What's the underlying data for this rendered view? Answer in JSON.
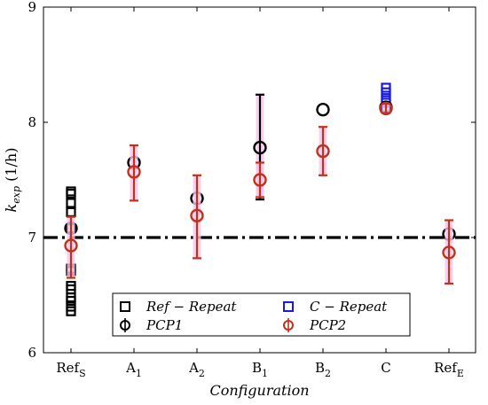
{
  "chart_data": {
    "type": "scatter",
    "xlabel": "Configuration",
    "ylabel": "k_exp (1/h)",
    "ylabel_main": "k",
    "ylabel_sub": "exp",
    "ylabel_unit": " (1/h)",
    "ylim": [
      6,
      9
    ],
    "yticks": [
      6,
      7,
      8,
      9
    ],
    "categories": [
      {
        "main": "Ref",
        "sub": "S"
      },
      {
        "main": "A",
        "sub": "1"
      },
      {
        "main": "A",
        "sub": "2"
      },
      {
        "main": "B",
        "sub": "1"
      },
      {
        "main": "B",
        "sub": "2"
      },
      {
        "main": "C",
        "sub": ""
      },
      {
        "main": "Ref",
        "sub": "E"
      }
    ],
    "reference_line": {
      "y": 7.0,
      "style": "dash-dot",
      "color": "#000000"
    },
    "series": [
      {
        "name": "Ref − Repeat",
        "marker": "square",
        "color": "#000000",
        "points": [
          {
            "x": 0,
            "y": 7.4
          },
          {
            "x": 0,
            "y": 7.38
          },
          {
            "x": 0,
            "y": 7.3
          },
          {
            "x": 0,
            "y": 7.22
          },
          {
            "x": 0,
            "y": 7.08
          },
          {
            "x": 0,
            "y": 6.73
          },
          {
            "x": 0,
            "y": 6.71
          },
          {
            "x": 0,
            "y": 6.58
          },
          {
            "x": 0,
            "y": 6.55
          },
          {
            "x": 0,
            "y": 6.48
          },
          {
            "x": 0,
            "y": 6.45
          },
          {
            "x": 0,
            "y": 6.4
          },
          {
            "x": 0,
            "y": 6.36
          }
        ]
      },
      {
        "name": "C − Repeat",
        "marker": "square",
        "color": "#1a1adf",
        "points": [
          {
            "x": 5,
            "y": 8.3
          },
          {
            "x": 5,
            "y": 8.26
          },
          {
            "x": 5,
            "y": 8.21
          },
          {
            "x": 5,
            "y": 8.17
          },
          {
            "x": 5,
            "y": 8.13
          }
        ]
      },
      {
        "name": "PCP1",
        "marker": "circle",
        "color": "#000000",
        "points": [
          {
            "x": 0,
            "y": 7.08,
            "err_low": 7.08,
            "err_high": 7.08
          },
          {
            "x": 1,
            "y": 7.65,
            "err_low": 7.65,
            "err_high": 7.65
          },
          {
            "x": 2,
            "y": 7.34,
            "err_low": 7.34,
            "err_high": 7.34
          },
          {
            "x": 3,
            "y": 7.78,
            "err_low": 7.33,
            "err_high": 8.24
          },
          {
            "x": 4,
            "y": 8.11,
            "err_low": 8.11,
            "err_high": 8.11
          },
          {
            "x": 5,
            "y": 8.13,
            "err_low": 8.13,
            "err_high": 8.13
          },
          {
            "x": 6,
            "y": 7.03,
            "err_low": 7.03,
            "err_high": 7.03
          }
        ]
      },
      {
        "name": "PCP2",
        "marker": "circle",
        "color": "#c0321c",
        "points": [
          {
            "x": 0,
            "y": 6.93,
            "err_low": 6.65,
            "err_high": 7.18
          },
          {
            "x": 1,
            "y": 7.57,
            "err_low": 7.32,
            "err_high": 7.8
          },
          {
            "x": 2,
            "y": 7.19,
            "err_low": 6.82,
            "err_high": 7.54
          },
          {
            "x": 3,
            "y": 7.5,
            "err_low": 7.35,
            "err_high": 7.65
          },
          {
            "x": 4,
            "y": 7.75,
            "err_low": 7.54,
            "err_high": 7.96
          },
          {
            "x": 5,
            "y": 8.12,
            "err_low": 8.08,
            "err_high": 8.16
          },
          {
            "x": 6,
            "y": 6.87,
            "err_low": 6.6,
            "err_high": 7.15
          }
        ]
      }
    ],
    "legend": {
      "placement": "bottom-center",
      "entries": [
        {
          "series": "Ref − Repeat",
          "text": "Ref − Repeat"
        },
        {
          "series": "C − Repeat",
          "text": "C − Repeat"
        },
        {
          "series": "PCP1",
          "text": "PCP1"
        },
        {
          "series": "PCP2",
          "text": "PCP2"
        }
      ]
    },
    "grid": false,
    "colors": {
      "errorbar_shadow": "#f7c6ec"
    }
  }
}
